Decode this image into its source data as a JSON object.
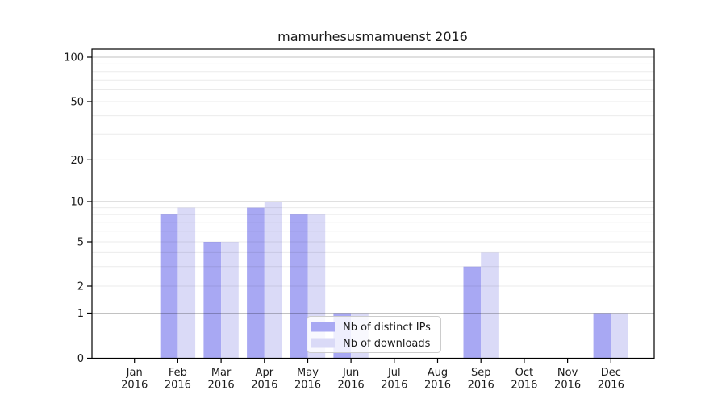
{
  "chart_data": {
    "type": "bar",
    "title": "mamurhesusmamuenst 2016",
    "categories": [
      "Jan",
      "Feb",
      "Mar",
      "Apr",
      "May",
      "Jun",
      "Jul",
      "Aug",
      "Sep",
      "Oct",
      "Nov",
      "Dec"
    ],
    "year_label": "2016",
    "series": [
      {
        "name": "Nb of distinct IPs",
        "color": "#a8a8f3",
        "values": [
          0,
          8,
          5,
          9,
          8,
          1,
          0,
          0,
          3,
          0,
          0,
          1
        ]
      },
      {
        "name": "Nb of downloads",
        "color": "#dadaf7",
        "values": [
          0,
          9,
          5,
          10,
          8,
          1,
          0,
          0,
          4,
          0,
          0,
          1
        ]
      }
    ],
    "yticks": [
      0,
      1,
      2,
      5,
      10,
      20,
      50,
      100
    ],
    "minor_gridlines": [
      3,
      4,
      6,
      7,
      8,
      9,
      30,
      40,
      60,
      70,
      80,
      90
    ],
    "decade_gridlines": [
      1,
      10,
      100
    ],
    "ylim": [
      0,
      100
    ],
    "yscale": "symlog",
    "grid": true,
    "legend_position": "lower center",
    "background": "#ffffff",
    "axis_color": "#000000",
    "minor_grid_color": "rgba(0,0,0,0.08)",
    "decade_grid_color": "rgba(0,0,0,0.24)"
  }
}
